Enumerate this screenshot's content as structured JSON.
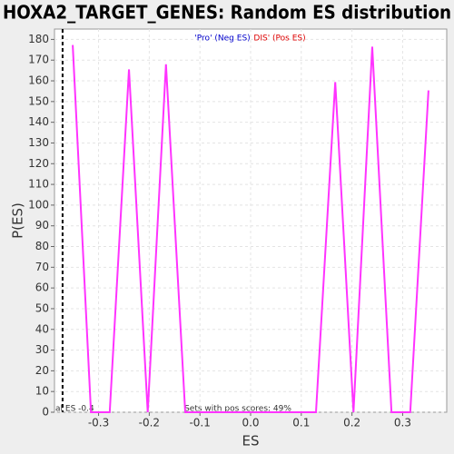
{
  "chart_data": {
    "type": "line",
    "title": "HOXA2_TARGET_GENES: Random ES distribution",
    "xlabel": "ES",
    "ylabel": "P(ES)",
    "x": [
      -0.351,
      -0.315,
      -0.278,
      -0.24,
      -0.203,
      -0.167,
      -0.129,
      0.129,
      0.167,
      0.203,
      0.24,
      0.278,
      0.315,
      0.351
    ],
    "values": [
      177.3,
      0,
      0,
      165.5,
      0,
      168,
      0,
      0,
      159.4,
      0,
      176.5,
      0,
      0,
      155.4
    ],
    "color": "#ff33ff",
    "xlim": [
      -0.387,
      0.387
    ],
    "ylim": [
      0,
      185
    ],
    "xticks": [
      -0.3,
      -0.2,
      -0.1,
      {
        "value": 0,
        "label": "0.0"
      },
      0.1,
      0.2,
      0.3
    ],
    "yticks": [
      0,
      10,
      20,
      30,
      40,
      50,
      60,
      70,
      80,
      90,
      100,
      110,
      120,
      130,
      140,
      150,
      160,
      170,
      180
    ],
    "grid": true,
    "es_line": -0.371,
    "es_label": "al ES -0.4",
    "annotation": "Sets with pos scores: 49%",
    "legend": [
      {
        "name": "'Pro' (Neg ES)",
        "color": "#0000cc"
      },
      {
        "name": "DIS' (Pos ES)",
        "color": "#dd0000"
      }
    ]
  }
}
